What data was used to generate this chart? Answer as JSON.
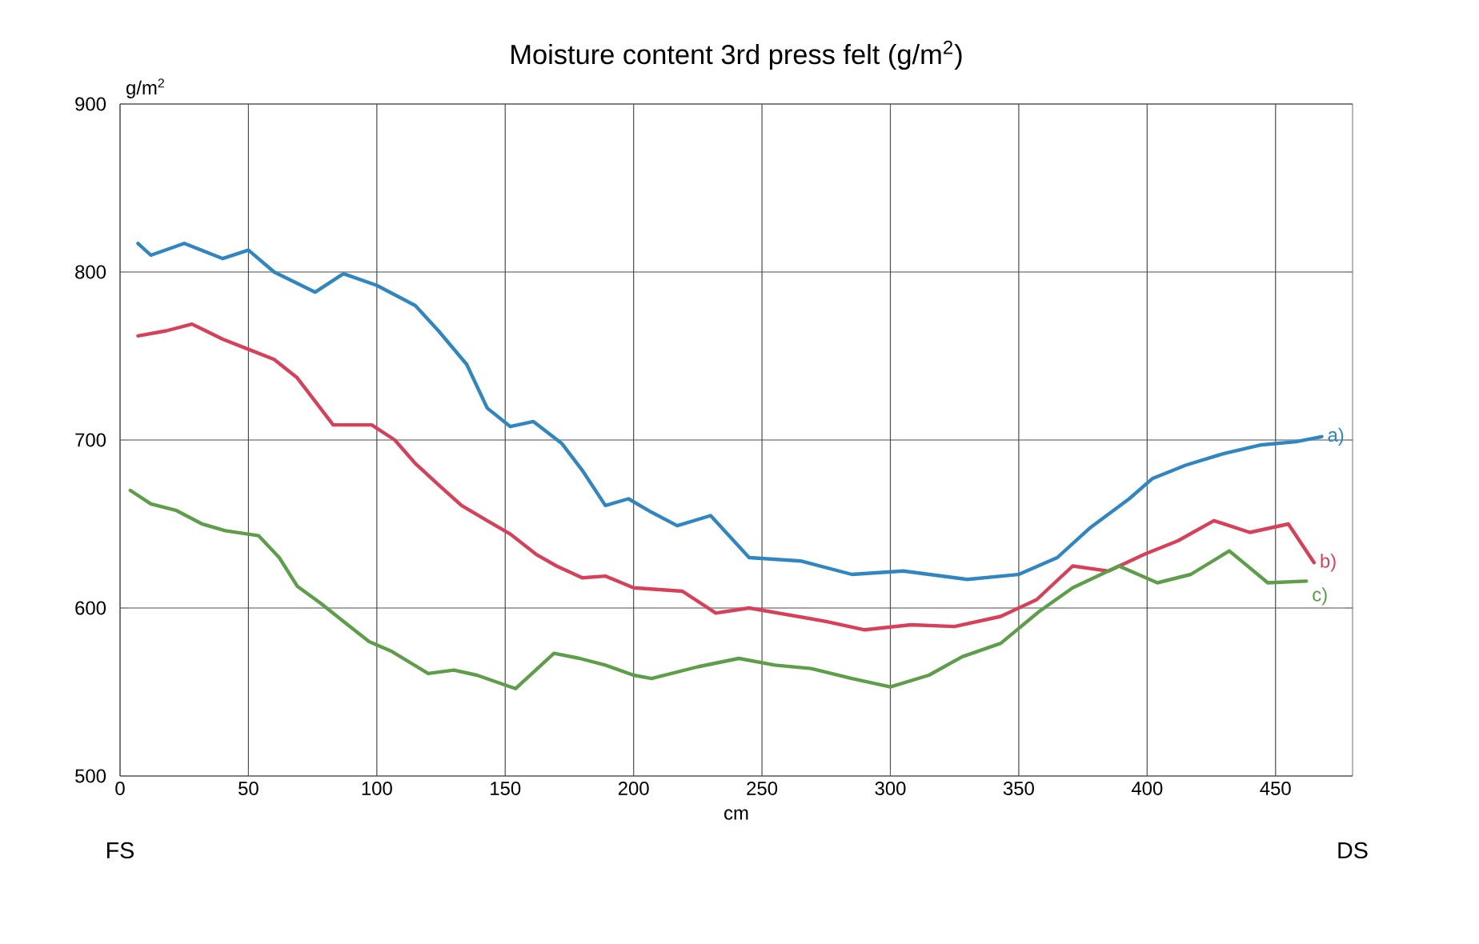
{
  "chart_data": {
    "type": "line",
    "title": "Moisture content 3rd press felt (g/m$^{2}$)",
    "xlabel": "cm",
    "ylabel": "g/m$^{2}$",
    "xlim": [
      0,
      480
    ],
    "ylim": [
      500,
      900
    ],
    "xticks": [
      0,
      50,
      100,
      150,
      200,
      250,
      300,
      350,
      400,
      450
    ],
    "yticks": [
      500,
      600,
      700,
      800,
      900
    ],
    "grid": true,
    "legend": false,
    "marker": "none",
    "line_style": "solid",
    "annotations": [
      "FS",
      "DS"
    ],
    "series": [
      {
        "name": "a)",
        "color": "#2f86c0",
        "x": [
          7,
          12,
          25,
          40,
          50,
          60,
          76,
          87,
          100,
          115,
          124,
          135,
          143,
          152,
          161,
          172,
          180,
          189,
          198,
          207,
          217,
          230,
          245,
          265,
          285,
          305,
          330,
          350,
          365,
          378,
          393,
          402,
          415,
          430,
          444,
          458,
          468
        ],
        "values": [
          817,
          810,
          817,
          808,
          813,
          800,
          788,
          799,
          792,
          780,
          765,
          745,
          719,
          708,
          711,
          698,
          682,
          661,
          665,
          657,
          649,
          655,
          630,
          628,
          620,
          622,
          617,
          620,
          630,
          648,
          665,
          677,
          685,
          692,
          697,
          699,
          702
        ]
      },
      {
        "name": "b)",
        "color": "#d8405a",
        "x": [
          7,
          18,
          28,
          40,
          50,
          60,
          69,
          83,
          98,
          107,
          115,
          125,
          133,
          143,
          152,
          162,
          170,
          180,
          189,
          200,
          219,
          232,
          245,
          260,
          275,
          290,
          308,
          325,
          343,
          357,
          371,
          385,
          399,
          412,
          426,
          440,
          455,
          465
        ],
        "values": [
          762,
          765,
          769,
          760,
          754,
          748,
          737,
          709,
          709,
          700,
          686,
          672,
          661,
          652,
          644,
          632,
          625,
          618,
          619,
          612,
          610,
          597,
          600,
          596,
          592,
          587,
          590,
          589,
          595,
          605,
          625,
          622,
          632,
          640,
          652,
          645,
          650,
          627
        ]
      },
      {
        "name": "c)",
        "color": "#5e9e4a",
        "x": [
          4,
          12,
          22,
          32,
          41,
          54,
          62,
          69,
          78,
          87,
          97,
          106,
          120,
          130,
          139,
          154,
          169,
          179,
          189,
          200,
          207,
          225,
          241,
          255,
          269,
          285,
          300,
          315,
          328,
          343,
          358,
          371,
          389,
          404,
          417,
          432,
          447,
          462
        ],
        "values": [
          670,
          662,
          658,
          650,
          646,
          643,
          630,
          613,
          603,
          592,
          580,
          574,
          561,
          563,
          560,
          552,
          573,
          570,
          566,
          560,
          558,
          565,
          570,
          566,
          564,
          558,
          553,
          560,
          571,
          579,
          598,
          612,
          625,
          615,
          620,
          634,
          615,
          616
        ]
      }
    ]
  }
}
